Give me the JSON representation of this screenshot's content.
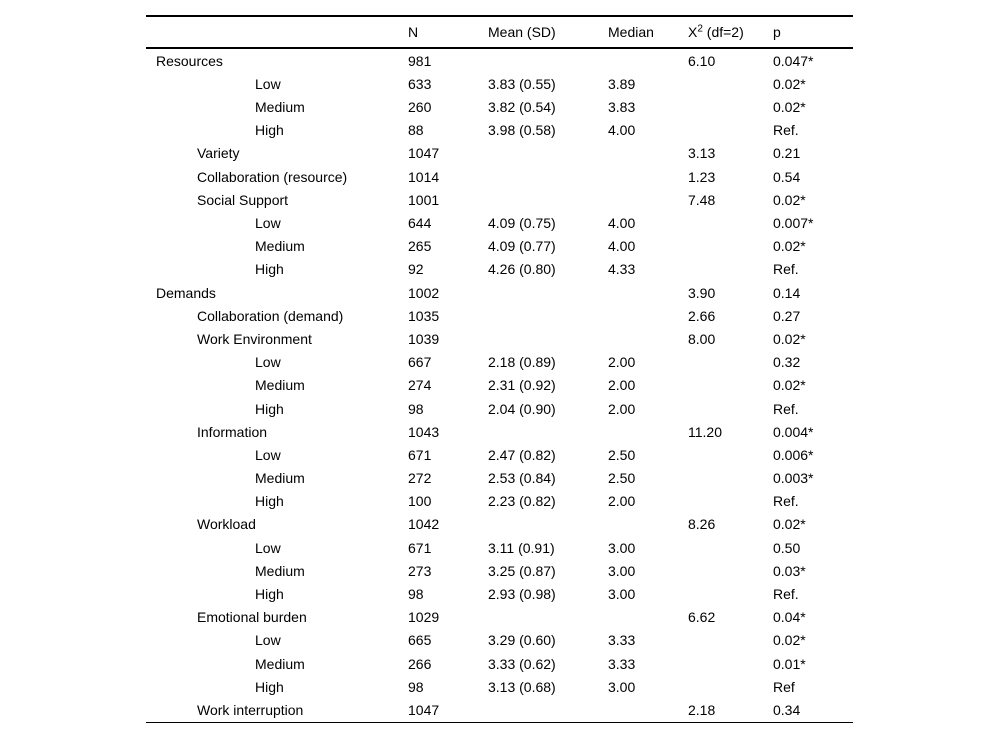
{
  "table": {
    "header": {
      "label": "",
      "n": "N",
      "mean_sd": "Mean (SD)",
      "median": "Median",
      "chi_base": "X",
      "chi_sup": "2",
      "chi_rest": " (df=2)",
      "p": "p"
    },
    "rows": [
      {
        "label": "Resources",
        "indent": 0,
        "n": "981",
        "mean_sd": "",
        "median": "",
        "chi": "6.10",
        "p": "0.047*"
      },
      {
        "label": "Low",
        "indent": 2,
        "n": "633",
        "mean_sd": "3.83 (0.55)",
        "median": "3.89",
        "chi": "",
        "p": "0.02*"
      },
      {
        "label": "Medium",
        "indent": 2,
        "n": "260",
        "mean_sd": "3.82 (0.54)",
        "median": "3.83",
        "chi": "",
        "p": "0.02*"
      },
      {
        "label": "High",
        "indent": 2,
        "n": "88",
        "mean_sd": "3.98 (0.58)",
        "median": "4.00",
        "chi": "",
        "p": "Ref."
      },
      {
        "label": "Variety",
        "indent": 1,
        "n": "1047",
        "mean_sd": "",
        "median": "",
        "chi": "3.13",
        "p": "0.21"
      },
      {
        "label": "Collaboration (resource)",
        "indent": 1,
        "n": "1014",
        "mean_sd": "",
        "median": "",
        "chi": "1.23",
        "p": "0.54"
      },
      {
        "label": "Social Support",
        "indent": 1,
        "n": "1001",
        "mean_sd": "",
        "median": "",
        "chi": "7.48",
        "p": "0.02*"
      },
      {
        "label": "Low",
        "indent": 2,
        "n": "644",
        "mean_sd": "4.09 (0.75)",
        "median": "4.00",
        "chi": "",
        "p": "0.007*"
      },
      {
        "label": "Medium",
        "indent": 2,
        "n": "265",
        "mean_sd": "4.09 (0.77)",
        "median": "4.00",
        "chi": "",
        "p": "0.02*"
      },
      {
        "label": "High",
        "indent": 2,
        "n": "92",
        "mean_sd": "4.26 (0.80)",
        "median": "4.33",
        "chi": "",
        "p": "Ref."
      },
      {
        "label": "Demands",
        "indent": 0,
        "n": "1002",
        "mean_sd": "",
        "median": "",
        "chi": "3.90",
        "p": "0.14"
      },
      {
        "label": "Collaboration (demand)",
        "indent": 1,
        "n": "1035",
        "mean_sd": "",
        "median": "",
        "chi": "2.66",
        "p": "0.27"
      },
      {
        "label": "Work Environment",
        "indent": 1,
        "n": "1039",
        "mean_sd": "",
        "median": "",
        "chi": "8.00",
        "p": "0.02*"
      },
      {
        "label": "Low",
        "indent": 2,
        "n": "667",
        "mean_sd": "2.18 (0.89)",
        "median": "2.00",
        "chi": "",
        "p": "0.32"
      },
      {
        "label": "Medium",
        "indent": 2,
        "n": "274",
        "mean_sd": "2.31 (0.92)",
        "median": "2.00",
        "chi": "",
        "p": "0.02*"
      },
      {
        "label": "High",
        "indent": 2,
        "n": "98",
        "mean_sd": "2.04 (0.90)",
        "median": "2.00",
        "chi": "",
        "p": "Ref."
      },
      {
        "label": "Information",
        "indent": 1,
        "n": "1043",
        "mean_sd": "",
        "median": "",
        "chi": "11.20",
        "p": "0.004*"
      },
      {
        "label": "Low",
        "indent": 2,
        "n": "671",
        "mean_sd": "2.47 (0.82)",
        "median": "2.50",
        "chi": "",
        "p": "0.006*"
      },
      {
        "label": "Medium",
        "indent": 2,
        "n": "272",
        "mean_sd": "2.53 (0.84)",
        "median": "2.50",
        "chi": "",
        "p": "0.003*"
      },
      {
        "label": "High",
        "indent": 2,
        "n": "100",
        "mean_sd": "2.23 (0.82)",
        "median": "2.00",
        "chi": "",
        "p": "Ref."
      },
      {
        "label": "Workload",
        "indent": 1,
        "n": "1042",
        "mean_sd": "",
        "median": "",
        "chi": "8.26",
        "p": "0.02*"
      },
      {
        "label": "Low",
        "indent": 2,
        "n": "671",
        "mean_sd": "3.11 (0.91)",
        "median": "3.00",
        "chi": "",
        "p": "0.50"
      },
      {
        "label": "Medium",
        "indent": 2,
        "n": "273",
        "mean_sd": "3.25 (0.87)",
        "median": "3.00",
        "chi": "",
        "p": "0.03*"
      },
      {
        "label": "High",
        "indent": 2,
        "n": "98",
        "mean_sd": "2.93 (0.98)",
        "median": "3.00",
        "chi": "",
        "p": "Ref."
      },
      {
        "label": "Emotional burden",
        "indent": 1,
        "n": "1029",
        "mean_sd": "",
        "median": "",
        "chi": "6.62",
        "p": "0.04*"
      },
      {
        "label": "Low",
        "indent": 2,
        "n": "665",
        "mean_sd": "3.29 (0.60)",
        "median": "3.33",
        "chi": "",
        "p": "0.02*"
      },
      {
        "label": "Medium",
        "indent": 2,
        "n": "266",
        "mean_sd": "3.33 (0.62)",
        "median": "3.33",
        "chi": "",
        "p": "0.01*"
      },
      {
        "label": "High",
        "indent": 2,
        "n": "98",
        "mean_sd": "3.13 (0.68)",
        "median": "3.00",
        "chi": "",
        "p": "Ref"
      },
      {
        "label": "Work interruption",
        "indent": 1,
        "n": "1047",
        "mean_sd": "",
        "median": "",
        "chi": "2.18",
        "p": "0.34"
      }
    ]
  }
}
